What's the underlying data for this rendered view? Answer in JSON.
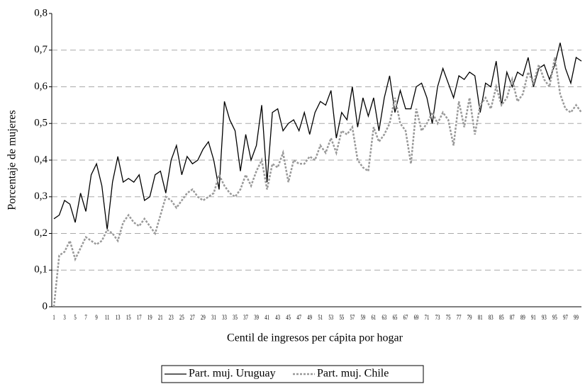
{
  "chart_data": {
    "type": "line",
    "x_label": "Centil de ingresos per cápita por hogar",
    "y_label": "Porcentaje de mujeres",
    "categories": [
      1,
      null,
      3,
      null,
      5,
      null,
      7,
      null,
      9,
      null,
      11,
      null,
      13,
      null,
      15,
      null,
      17,
      null,
      19,
      null,
      21,
      null,
      23,
      null,
      25,
      null,
      27,
      null,
      29,
      null,
      31,
      null,
      33,
      null,
      35,
      null,
      37,
      null,
      39,
      null,
      41,
      null,
      43,
      null,
      45,
      null,
      47,
      null,
      49,
      null,
      51,
      null,
      53,
      null,
      55,
      null,
      57,
      null,
      59,
      null,
      61,
      null,
      63,
      null,
      65,
      null,
      67,
      null,
      69,
      null,
      71,
      null,
      73,
      null,
      75,
      null,
      77,
      null,
      79,
      null,
      81,
      null,
      83,
      null,
      85,
      null,
      87,
      null,
      89,
      null,
      91,
      null,
      93,
      null,
      95,
      null,
      97,
      null,
      99,
      null
    ],
    "series": [
      {
        "name": "Part. muj. Uruguay",
        "color": "#000000",
        "dash": "solid",
        "values": [
          0.24,
          0.25,
          0.29,
          0.28,
          0.23,
          0.31,
          0.26,
          0.36,
          0.39,
          0.33,
          0.21,
          0.34,
          0.41,
          0.34,
          0.35,
          0.34,
          0.36,
          0.29,
          0.3,
          0.36,
          0.37,
          0.31,
          0.4,
          0.44,
          0.36,
          0.41,
          0.39,
          0.4,
          0.43,
          0.45,
          0.4,
          0.32,
          0.56,
          0.51,
          0.48,
          0.37,
          0.47,
          0.4,
          0.44,
          0.55,
          0.34,
          0.53,
          0.54,
          0.48,
          0.5,
          0.51,
          0.48,
          0.53,
          0.47,
          0.53,
          0.56,
          0.55,
          0.59,
          0.46,
          0.53,
          0.51,
          0.6,
          0.49,
          0.57,
          0.52,
          0.57,
          0.48,
          0.57,
          0.63,
          0.53,
          0.59,
          0.54,
          0.54,
          0.6,
          0.61,
          0.57,
          0.5,
          0.6,
          0.65,
          0.61,
          0.57,
          0.63,
          0.62,
          0.64,
          0.63,
          0.53,
          0.61,
          0.6,
          0.67,
          0.55,
          0.64,
          0.6,
          0.64,
          0.63,
          0.68,
          0.6,
          0.65,
          0.66,
          0.62,
          0.66,
          0.72,
          0.65,
          0.61,
          0.68,
          0.67
        ]
      },
      {
        "name": "Part. muj. Chile",
        "color": "#999999",
        "dash": "dotted",
        "values": [
          0.0,
          0.14,
          0.15,
          0.18,
          0.13,
          0.16,
          0.19,
          0.18,
          0.17,
          0.18,
          0.21,
          0.2,
          0.18,
          0.23,
          0.25,
          0.23,
          0.22,
          0.24,
          0.22,
          0.2,
          0.25,
          0.3,
          0.29,
          0.27,
          0.29,
          0.31,
          0.32,
          0.3,
          0.29,
          0.3,
          0.31,
          0.36,
          0.33,
          0.31,
          0.3,
          0.32,
          0.36,
          0.33,
          0.37,
          0.4,
          0.32,
          0.39,
          0.38,
          0.42,
          0.34,
          0.4,
          0.39,
          0.39,
          0.41,
          0.4,
          0.44,
          0.42,
          0.46,
          0.42,
          0.48,
          0.47,
          0.49,
          0.4,
          0.38,
          0.37,
          0.49,
          0.45,
          0.47,
          0.5,
          0.57,
          0.5,
          0.48,
          0.39,
          0.54,
          0.48,
          0.5,
          0.53,
          0.5,
          0.53,
          0.51,
          0.44,
          0.56,
          0.49,
          0.57,
          0.47,
          0.55,
          0.57,
          0.54,
          0.6,
          0.55,
          0.57,
          0.62,
          0.56,
          0.58,
          0.64,
          0.61,
          0.66,
          0.62,
          0.6,
          0.68,
          0.58,
          0.54,
          0.53,
          0.55,
          0.53
        ]
      }
    ],
    "ylim": [
      0,
      0.8
    ],
    "yticks": [
      0,
      {
        "value": 0.1,
        "label": "0,1"
      },
      {
        "value": 0.2,
        "label": "0,2"
      },
      {
        "value": 0.3,
        "label": "0,3"
      },
      {
        "value": 0.4,
        "label": "0,4"
      },
      {
        "value": 0.5,
        "label": "0,5"
      },
      {
        "value": 0.6,
        "label": "0,6"
      },
      {
        "value": 0.7,
        "label": "0,7"
      },
      {
        "value": 0.8,
        "label": "0,8"
      }
    ],
    "grid": true,
    "legend": "bottom"
  }
}
